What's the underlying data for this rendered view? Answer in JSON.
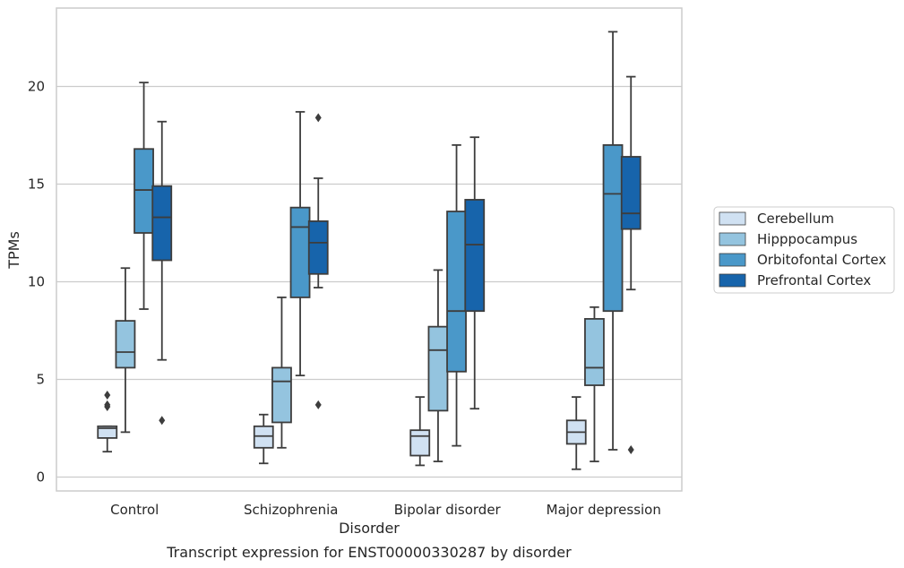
{
  "chart_data": {
    "type": "box",
    "xlabel": "Disorder",
    "ylabel": "TPMs",
    "caption": "Transcript expression for ENST00000330287 by disorder",
    "categories": [
      "Control",
      "Schizophrenia",
      "Bipolar disorder",
      "Major depression"
    ],
    "ylim": [
      -0.6,
      24.0
    ],
    "yticks": [
      0,
      5,
      10,
      15,
      20
    ],
    "grid": true,
    "legend_position": "right",
    "series": [
      {
        "name": "Cerebellum",
        "color": "#d0e1f2",
        "boxes": [
          {
            "whisker_low": 1.3,
            "q1": 2.0,
            "median": 2.5,
            "q3": 2.6,
            "whisker_high": 2.6,
            "outliers": [
              3.6,
              3.7,
              4.2
            ]
          },
          {
            "whisker_low": 0.7,
            "q1": 1.5,
            "median": 2.1,
            "q3": 2.6,
            "whisker_high": 3.2,
            "outliers": []
          },
          {
            "whisker_low": 0.6,
            "q1": 1.1,
            "median": 2.1,
            "q3": 2.4,
            "whisker_high": 4.1,
            "outliers": []
          },
          {
            "whisker_low": 0.4,
            "q1": 1.7,
            "median": 2.3,
            "q3": 2.9,
            "whisker_high": 4.1,
            "outliers": []
          }
        ]
      },
      {
        "name": "Hipppocampus",
        "color": "#94c4df",
        "boxes": [
          {
            "whisker_low": 2.3,
            "q1": 5.6,
            "median": 6.4,
            "q3": 8.0,
            "whisker_high": 10.7,
            "outliers": []
          },
          {
            "whisker_low": 1.5,
            "q1": 2.8,
            "median": 4.9,
            "q3": 5.6,
            "whisker_high": 9.2,
            "outliers": []
          },
          {
            "whisker_low": 0.8,
            "q1": 3.4,
            "median": 6.5,
            "q3": 7.7,
            "whisker_high": 10.6,
            "outliers": []
          },
          {
            "whisker_low": 0.8,
            "q1": 4.7,
            "median": 5.6,
            "q3": 8.1,
            "whisker_high": 8.7,
            "outliers": []
          }
        ]
      },
      {
        "name": "Orbitofontal Cortex",
        "color": "#4a98c9",
        "boxes": [
          {
            "whisker_low": 8.6,
            "q1": 12.5,
            "median": 14.7,
            "q3": 16.8,
            "whisker_high": 20.2,
            "outliers": []
          },
          {
            "whisker_low": 5.2,
            "q1": 9.2,
            "median": 12.8,
            "q3": 13.8,
            "whisker_high": 18.7,
            "outliers": []
          },
          {
            "whisker_low": 1.6,
            "q1": 5.4,
            "median": 8.5,
            "q3": 13.6,
            "whisker_high": 17.0,
            "outliers": []
          },
          {
            "whisker_low": 1.4,
            "q1": 8.5,
            "median": 14.5,
            "q3": 17.0,
            "whisker_high": 22.8,
            "outliers": []
          }
        ]
      },
      {
        "name": "Prefrontal Cortex",
        "color": "#1764ab",
        "boxes": [
          {
            "whisker_low": 6.0,
            "q1": 11.1,
            "median": 13.3,
            "q3": 14.9,
            "whisker_high": 18.2,
            "outliers": [
              2.9
            ]
          },
          {
            "whisker_low": 9.7,
            "q1": 10.4,
            "median": 12.0,
            "q3": 13.1,
            "whisker_high": 15.3,
            "outliers": [
              3.7,
              18.4
            ]
          },
          {
            "whisker_low": 3.5,
            "q1": 8.5,
            "median": 11.9,
            "q3": 14.2,
            "whisker_high": 17.4,
            "outliers": []
          },
          {
            "whisker_low": 9.6,
            "q1": 12.7,
            "median": 13.5,
            "q3": 16.4,
            "whisker_high": 20.5,
            "outliers": [
              1.4
            ]
          }
        ]
      }
    ]
  }
}
